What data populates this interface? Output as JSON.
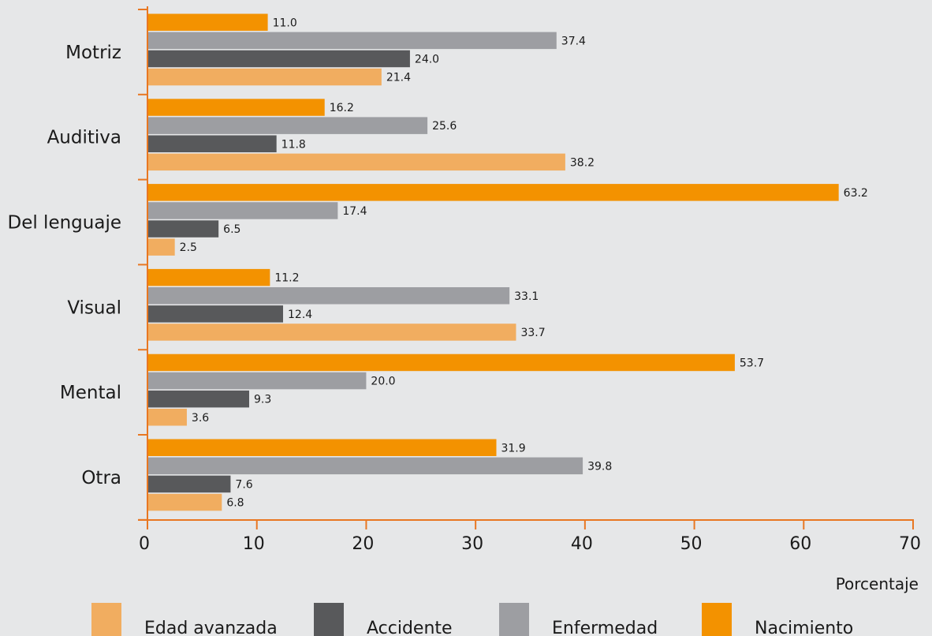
{
  "chart_data": {
    "type": "bar",
    "orientation": "horizontal",
    "title": "",
    "xlabel": "Porcentaje",
    "ylabel": "",
    "xlim": [
      0,
      70
    ],
    "xticks": [
      0,
      10,
      20,
      30,
      40,
      50,
      60,
      70
    ],
    "grid": false,
    "legend_position": "bottom",
    "categories": [
      "Motriz",
      "Auditiva",
      "Del lenguaje",
      "Visual",
      "Mental",
      "Otra"
    ],
    "series": [
      {
        "name": "Nacimiento",
        "color": "#f39200",
        "values": [
          11.0,
          16.2,
          63.2,
          11.2,
          53.7,
          31.9
        ],
        "labels": [
          "11.0",
          "16.2",
          "63.2",
          "11.2",
          "53.7",
          "31.9"
        ]
      },
      {
        "name": "Enfermedad",
        "color": "#9d9ea2",
        "values": [
          37.4,
          25.6,
          17.4,
          33.1,
          20.0,
          39.8
        ],
        "labels": [
          "37.4",
          "25.6",
          "17.4",
          "33.1",
          "20.0",
          "39.8"
        ]
      },
      {
        "name": "Accidente",
        "color": "#58595b",
        "values": [
          24.0,
          11.8,
          6.5,
          12.4,
          9.3,
          7.6
        ],
        "labels": [
          "24.0",
          "11.8",
          "6.5",
          "12.4",
          "9.3",
          "7.6"
        ]
      },
      {
        "name": "Edad avanzada",
        "color": "#f1ad60",
        "values": [
          21.4,
          38.2,
          2.5,
          33.7,
          3.6,
          6.8
        ],
        "labels": [
          "21.4",
          "38.2",
          "2.5",
          "33.7",
          "3.6",
          "6.8"
        ]
      }
    ],
    "legend_order": [
      "Edad avanzada",
      "Accidente",
      "Enfermedad",
      "Nacimiento"
    ],
    "axis_color": "#e87722"
  }
}
